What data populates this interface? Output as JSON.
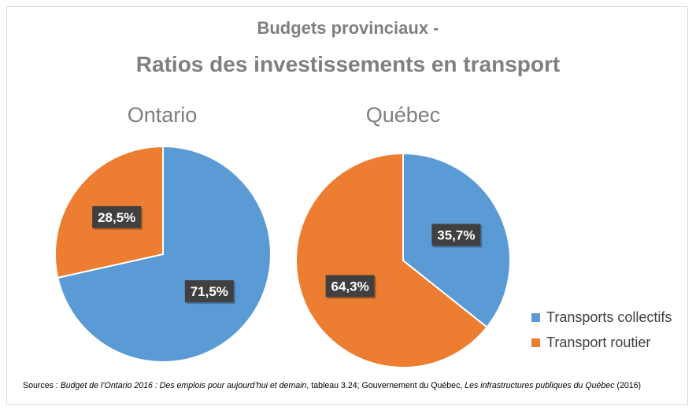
{
  "title_line1": "Budgets provinciaux -",
  "title_line2": "Ratios des investissements en transport",
  "colors": {
    "Transports collectifs": "#5b9bd5",
    "Transport routier": "#ed7d31",
    "label_bg": "#404040"
  },
  "legend": [
    "Transports collectifs",
    "Transport routier"
  ],
  "source": {
    "prefix": "Sources : ",
    "ontario_title": "Budget de l’Ontario 2016 : Des emplois pour aujourd’hui et demain",
    "middle": ", tableau 3.24; Gouvernement du Québec, ",
    "quebec_title": "Les infrastructures publiques du Québec",
    "suffix": " (2016)"
  },
  "chart_data": [
    {
      "type": "pie",
      "title": "Ontario",
      "categories": [
        "Transports collectifs",
        "Transport routier"
      ],
      "values": [
        71.5,
        28.5
      ],
      "labels": [
        "71,5%",
        "28,5%"
      ]
    },
    {
      "type": "pie",
      "title": "Québec",
      "categories": [
        "Transports collectifs",
        "Transport routier"
      ],
      "values": [
        35.7,
        64.3
      ],
      "labels": [
        "35,7%",
        "64,3%"
      ]
    }
  ]
}
